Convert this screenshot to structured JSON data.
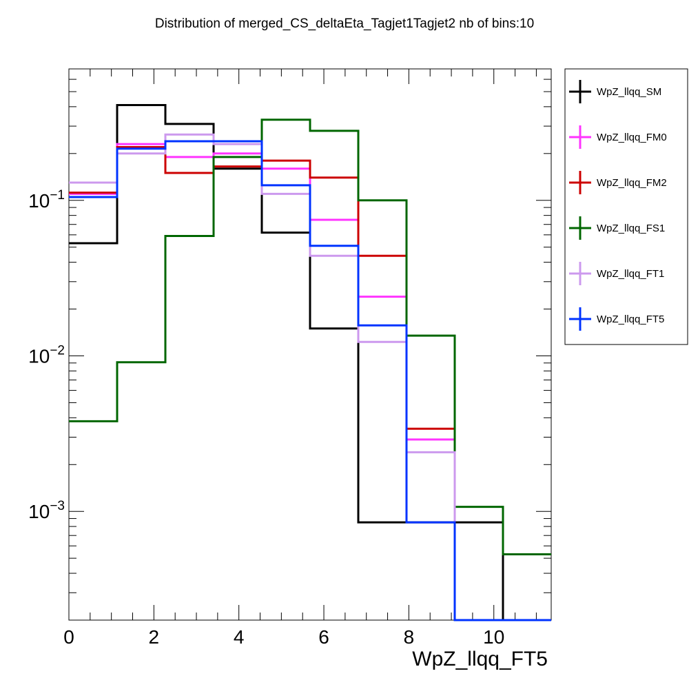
{
  "chart_data": {
    "type": "step-histogram",
    "title": "Distribution of merged_CS_deltaEta_Tagjet1Tagjet2 nb of bins:10",
    "xlabel": "WpZ_llqq_FT5",
    "ylabel": "",
    "xlim": [
      0,
      11.35
    ],
    "ylim": [
      0.0002,
      0.7
    ],
    "yscale": "log",
    "x_ticks": [
      0,
      2,
      4,
      6,
      8,
      10
    ],
    "y_ticks": [
      {
        "base": "10",
        "exp": "−1",
        "value": 0.1
      },
      {
        "base": "10",
        "exp": "−2",
        "value": 0.01
      },
      {
        "base": "10",
        "exp": "−3",
        "value": 0.001
      }
    ],
    "grid": false,
    "legend_position": "right",
    "bin_edges": [
      0,
      1.135,
      2.27,
      3.405,
      4.54,
      5.675,
      6.81,
      7.945,
      9.08,
      10.215,
      11.35
    ],
    "series": [
      {
        "name": "WpZ_llqq_SM",
        "color": "#000000",
        "values": [
          0.053,
          0.41,
          0.31,
          0.16,
          0.062,
          0.015,
          0.00085,
          0.00085,
          0.00085,
          0
        ]
      },
      {
        "name": "WpZ_llqq_FM0",
        "color": "#ff33ff",
        "values": [
          0.11,
          0.23,
          0.19,
          0.2,
          0.16,
          0.075,
          0.024,
          0.0029,
          0,
          0
        ]
      },
      {
        "name": "WpZ_llqq_FM2",
        "color": "#cc0000",
        "values": [
          0.112,
          0.22,
          0.15,
          0.165,
          0.18,
          0.14,
          0.044,
          0.0034,
          0,
          0
        ]
      },
      {
        "name": "WpZ_llqq_FS1",
        "color": "#006600",
        "values": [
          0.0038,
          0.0091,
          0.059,
          0.19,
          0.33,
          0.28,
          0.1,
          0.0135,
          0.00107,
          0.00053
        ]
      },
      {
        "name": "WpZ_llqq_FT1",
        "color": "#cc99ee",
        "values": [
          0.13,
          0.2,
          0.265,
          0.23,
          0.11,
          0.044,
          0.0123,
          0.0024,
          0,
          0
        ]
      },
      {
        "name": "WpZ_llqq_FT5",
        "color": "#0033ff",
        "values": [
          0.105,
          0.215,
          0.24,
          0.24,
          0.125,
          0.051,
          0.0157,
          0.00085,
          0,
          0
        ]
      }
    ]
  }
}
